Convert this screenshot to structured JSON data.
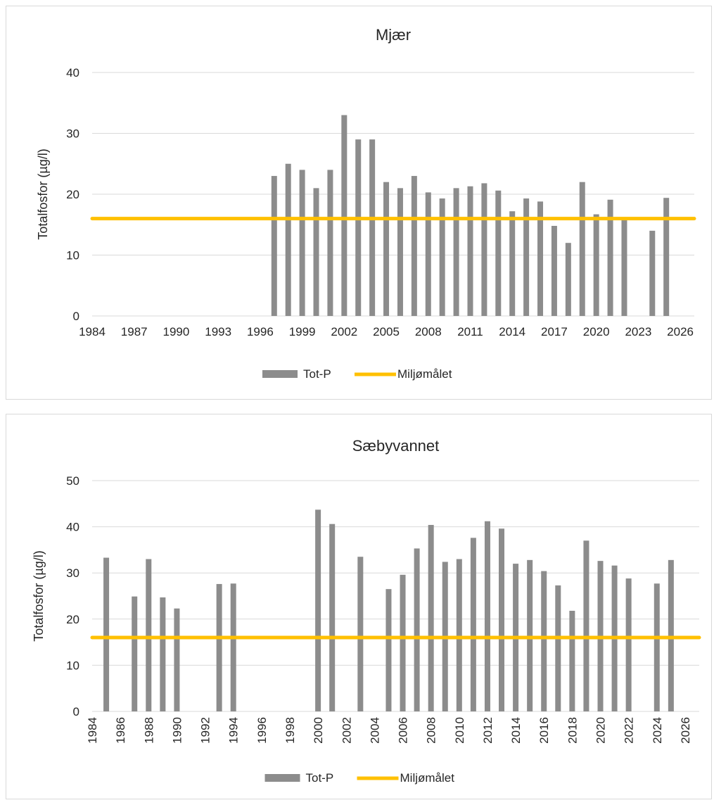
{
  "chart_data": [
    {
      "type": "bar",
      "title": "Mjær",
      "ylabel": "Totalfosfor (µg/l)",
      "xlabel": "",
      "ylim": [
        0,
        40
      ],
      "yticks": [
        0,
        10,
        20,
        30,
        40
      ],
      "xlim": [
        1984,
        2027
      ],
      "xticks": [
        1984,
        1987,
        1990,
        1993,
        1996,
        1999,
        2002,
        2005,
        2008,
        2011,
        2014,
        2017,
        2020,
        2023,
        2026
      ],
      "xtick_rotation": 0,
      "grid": true,
      "legend_position": "bottom",
      "bar_color": "#8c8c8c",
      "line_color": "#ffc000",
      "series": [
        {
          "name": "Tot-P",
          "type": "bar",
          "x": [
            1997,
            1998,
            1999,
            2000,
            2001,
            2002,
            2003,
            2004,
            2005,
            2006,
            2007,
            2008,
            2009,
            2010,
            2011,
            2012,
            2013,
            2014,
            2015,
            2016,
            2017,
            2018,
            2019,
            2020,
            2021,
            2022,
            2024,
            2025
          ],
          "values": [
            23,
            25,
            24,
            21,
            24,
            33,
            29,
            29,
            22,
            21,
            23,
            20.3,
            19.3,
            21,
            21.3,
            21.8,
            20.6,
            17.2,
            19.3,
            18.8,
            14.8,
            12,
            22,
            16.7,
            19.1,
            16,
            14,
            19.4
          ]
        },
        {
          "name": "Miljømålet",
          "type": "line",
          "value": 16
        }
      ]
    },
    {
      "type": "bar",
      "title": "Sæbyvannet",
      "ylabel": "Totalfosfor (µg/l)",
      "xlabel": "",
      "ylim": [
        0,
        50
      ],
      "yticks": [
        0,
        10,
        20,
        30,
        40,
        50
      ],
      "xlim": [
        1984,
        2027
      ],
      "xticks": [
        1984,
        1986,
        1988,
        1990,
        1992,
        1994,
        1996,
        1998,
        2000,
        2002,
        2004,
        2006,
        2008,
        2010,
        2012,
        2014,
        2016,
        2018,
        2020,
        2022,
        2024,
        2026
      ],
      "xtick_rotation": -90,
      "grid": true,
      "legend_position": "bottom",
      "bar_color": "#8c8c8c",
      "line_color": "#ffc000",
      "series": [
        {
          "name": "Tot-P",
          "type": "bar",
          "x": [
            1985,
            1987,
            1988,
            1989,
            1990,
            1993,
            1994,
            2000,
            2001,
            2003,
            2005,
            2006,
            2007,
            2008,
            2009,
            2010,
            2011,
            2012,
            2013,
            2014,
            2015,
            2016,
            2017,
            2018,
            2019,
            2020,
            2021,
            2022,
            2024,
            2025
          ],
          "values": [
            33.3,
            24.9,
            33,
            24.7,
            22.3,
            27.6,
            27.7,
            43.7,
            40.6,
            33.5,
            26.5,
            29.6,
            35.3,
            40.4,
            32.4,
            33,
            37.6,
            41.2,
            39.6,
            32,
            32.8,
            30.4,
            27.3,
            21.8,
            37,
            32.6,
            31.6,
            28.8,
            27.7,
            32.8
          ]
        },
        {
          "name": "Miljømålet",
          "type": "line",
          "value": 16
        }
      ]
    }
  ]
}
